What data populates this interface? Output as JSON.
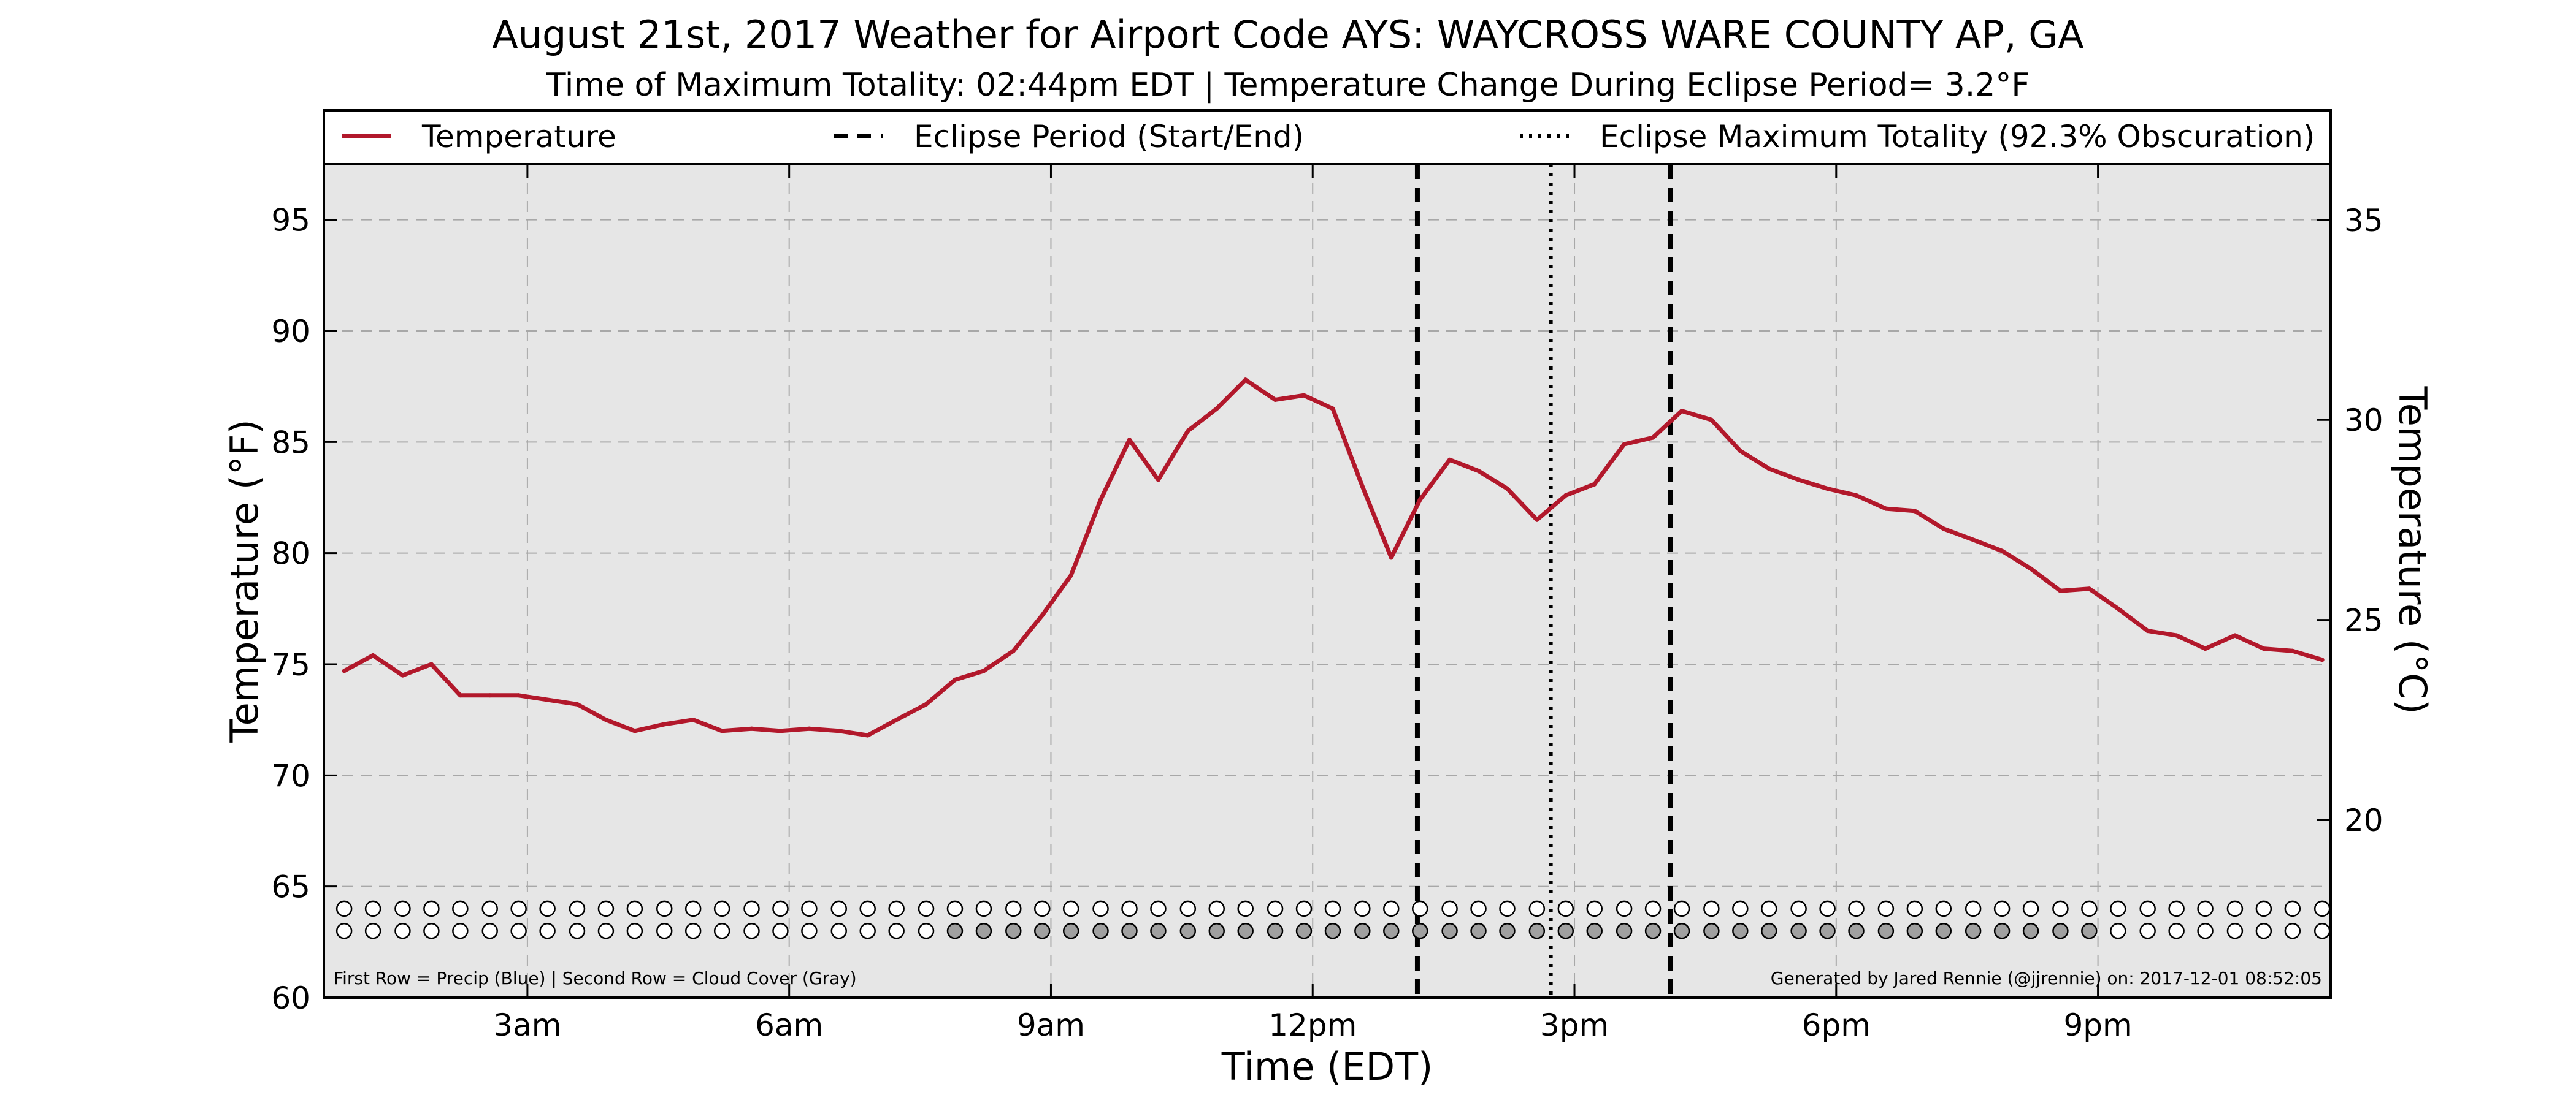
{
  "chart_data": {
    "type": "line",
    "title": "August 21st, 2017 Weather for Airport Code AYS: WAYCROSS WARE COUNTY AP, GA",
    "subtitle": "Time of Maximum Totality: 02:44pm EDT | Temperature Change During Eclipse Period= 3.2$^\\circ$F",
    "subtitle_display": "Time of Maximum Totality: 02:44pm EDT | Temperature Change During Eclipse Period= 3.2°F",
    "xlabel": "Time (EDT)",
    "ylabel_left": "Temperature ($^\\circ$F)",
    "ylabel_left_display": "Temperature (°F)",
    "ylabel_right": "Temperature ($^\\circ$C)",
    "ylabel_right_display": "Temperature (°C)",
    "xlim": [
      0.667,
      23.667
    ],
    "ylim": [
      60,
      97.5
    ],
    "ylim_right": [
      15.56,
      36.39
    ],
    "x_ticks": [
      3,
      6,
      9,
      12,
      15,
      18,
      21
    ],
    "x_tick_labels": [
      "3am",
      "6am",
      "9am",
      "12pm",
      "3pm",
      "6pm",
      "9pm"
    ],
    "y_ticks": [
      60,
      65,
      70,
      75,
      80,
      85,
      90,
      95
    ],
    "y_tick_labels": [
      "60",
      "65",
      "70",
      "75",
      "80",
      "85",
      "90",
      "95"
    ],
    "y_ticks_right": [
      15,
      20,
      25,
      30,
      35
    ],
    "y_tick_labels_right": [
      "15",
      "20",
      "25",
      "30",
      "35"
    ],
    "grid": true,
    "legend_placement": "top",
    "legend": [
      {
        "label": "Temperature",
        "style": "solid",
        "color": "#b2182b"
      },
      {
        "label": "Eclipse Period (Start/End)",
        "style": "dashed",
        "color": "#000000"
      },
      {
        "label": "Eclipse Maximum Totality (92.3% Obscuration)",
        "style": "dotted",
        "color": "#000000"
      }
    ],
    "eclipse_start": 13.2,
    "eclipse_max": 14.73,
    "eclipse_end": 16.1,
    "series": [
      {
        "name": "Temperature",
        "color": "#b2182b",
        "x": [
          0.9,
          1.23,
          1.57,
          1.9,
          2.23,
          2.57,
          2.9,
          3.23,
          3.57,
          3.9,
          4.23,
          4.57,
          4.9,
          5.23,
          5.57,
          5.9,
          6.23,
          6.57,
          6.9,
          7.23,
          7.57,
          7.9,
          8.23,
          8.57,
          8.9,
          9.23,
          9.57,
          9.9,
          10.23,
          10.57,
          10.9,
          11.23,
          11.57,
          11.9,
          12.23,
          12.57,
          12.9,
          13.23,
          13.57,
          13.9,
          14.23,
          14.57,
          14.9,
          15.23,
          15.57,
          15.9,
          16.23,
          16.57,
          16.9,
          17.23,
          17.57,
          17.9,
          18.23,
          18.57,
          18.9,
          19.23,
          19.57,
          19.9,
          20.23,
          20.57,
          20.9,
          21.23,
          21.57,
          21.9,
          22.23,
          22.57,
          22.9,
          23.23,
          23.57
        ],
        "values": [
          74.7,
          75.4,
          74.5,
          75.0,
          73.6,
          73.6,
          73.6,
          73.4,
          73.2,
          72.5,
          72.0,
          72.3,
          72.5,
          72.0,
          72.1,
          72.0,
          72.1,
          72.0,
          71.8,
          72.5,
          73.2,
          74.3,
          74.7,
          75.6,
          77.2,
          79.0,
          82.4,
          85.1,
          83.3,
          85.5,
          86.5,
          87.8,
          86.9,
          87.1,
          86.5,
          83.0,
          79.8,
          82.4,
          84.2,
          83.7,
          82.9,
          81.5,
          82.6,
          83.1,
          84.9,
          85.2,
          86.4,
          86.0,
          84.6,
          83.8,
          83.3,
          82.9,
          82.6,
          82.0,
          81.9,
          81.1,
          80.6,
          80.1,
          79.3,
          78.3,
          78.4,
          77.5,
          76.5,
          76.3,
          75.7,
          76.3,
          75.7,
          75.6,
          75.2
        ]
      }
    ],
    "markers": {
      "row1_label": "Precip (Blue)",
      "row2_label": "Cloud Cover (Gray)",
      "row1_y": 64.0,
      "row2_y": 63.0,
      "cloud_filled_from": 7.9,
      "cloud_filled_to": 20.9
    },
    "footnote_left": "First Row = Precip (Blue) | Second Row = Cloud Cover (Gray)",
    "footnote_right": "Generated by Jared Rennie (@jjrennie) on: 2017-12-01 08:52:05"
  },
  "colors": {
    "plot_bg": "#e6e6e6",
    "temperature": "#b2182b",
    "cloud_fill": "#a0a0a0",
    "grid": "#a8a8a8"
  }
}
